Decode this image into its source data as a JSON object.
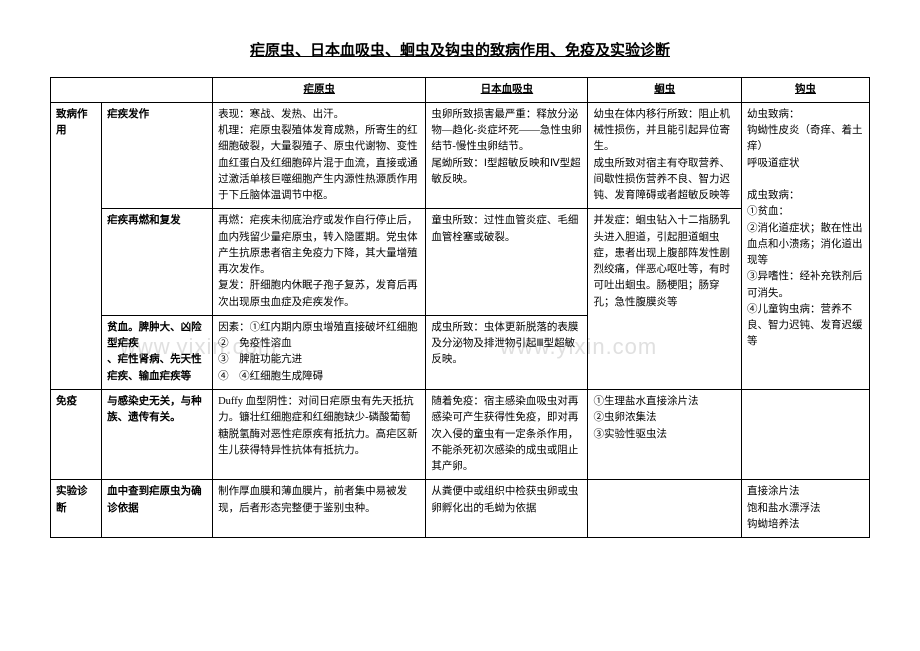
{
  "title": "疟原虫、日本血吸虫、蛔虫及钩虫的致病作用、免疫及实验诊断",
  "headers": {
    "blank": "",
    "col1": "疟原虫",
    "col2": "日本血吸虫",
    "col3": "蛔虫",
    "col4": "钩虫"
  },
  "rows": {
    "r1": {
      "cat": "致病作用",
      "sub": "疟疾发作",
      "c1": "表现：寒战、发热、出汗。\n机理：疟原虫裂殖体发育成熟，所寄生的红细胞破裂，大量裂殖子、原虫代谢物、变性血红蛋白及红细胞碎片混于血流，直接或通过激活单核巨噬细胞产生内源性热源质作用于下丘脑体温调节中枢。",
      "c2": "虫卵所致损害最严重：释放分泌物—趋化-炎症坏死——急性虫卵结节-慢性虫卵结节。\n尾蚴所致：Ⅰ型超敏反映和Ⅳ型超敏反映。",
      "c3": "幼虫在体内移行所致：阻止机械性损伤，并且能引起异位寄生。\n成虫所致对宿主有夺取营养、间歇性损伤营养不良、智力迟钝、发育障碍或者超敏反映等",
      "c4": "幼虫致病：\n钩蚴性皮炎（奇痒、着土痒）\n呼吸道症状"
    },
    "r2": {
      "sub": "疟疾再燃和复发",
      "c1": "再燃：疟疾未彻底治疗或发作自行停止后，血内残留少量疟原虫，转入隐匿期。党虫体产生抗原患者宿主免疫力下降，其大量增殖再次发作。\n复发：肝细胞内休眠子孢子复苏，发育后再次出现原虫血症及疟疾发作。",
      "c2": "童虫所致：过性血管炎症、毛细血管栓塞或破裂。",
      "c3": "并发症：蛔虫钻入十二指肠乳头进入胆道，引起胆道蛔虫症，患者出现上腹部阵发性剧烈绞痛，伴恶心呕吐等，有时可吐出蛔虫。肠梗阻；肠穿孔；急性腹膜炎等",
      "c4": "成虫致病：\n①贫血：\n②消化道症状；散在性出血点和小溃疡；消化道出现等\n③异嗜性：经补充铁剂后可消失。\n④儿童钩虫病：营养不良、智力迟钝、发育迟缓等"
    },
    "r3": {
      "sub": "贫血。脾肿大、凶险型疟疾\n、疟性肾病、先天性疟疾、输血疟疾等",
      "c1": "因素：①红内期内原虫增殖直接破坏红细胞\n②　免疫性溶血\n③　脾脏功能亢进\n④　④红细胞生成障碍",
      "c2": "成虫所致：虫体更新脱落的表膜及分泌物及排泄物引起Ⅲ型超敏反映。",
      "c3": "",
      "c4": ""
    },
    "r4": {
      "cat": "免疫",
      "sub": "与感染史无关，与种族、遗传有关。",
      "c1": "Duffy 血型阴性：对间日疟原虫有先天抵抗力。镰壮红细胞症和红细胞缺少-磷酸葡萄糖脱氢酶对恶性疟原疾有抵抗力。高疟区新生儿获得特异性抗体有抵抗力。",
      "c2": "随着免疫：宿主感染血吸虫对再感染可产生获得性免疫，即对再次入侵的童虫有一定条杀作用，不能杀死初次感染的成虫或阻止其产卵。",
      "c3": "①生理盐水直接涂片法\n②虫卵浓集法\n③实验性驱虫法",
      "c4": ""
    },
    "r5": {
      "cat": "实验诊断",
      "sub": "血中查到疟原虫为确诊依据",
      "c1": "制作厚血膜和薄血膜片，前者集中易被发现，后者形态完整便于鉴别虫种。",
      "c2": "从粪便中或组织中检获虫卵或虫卵孵化出的毛蚴为依据",
      "c3": "",
      "c4": "直接涂片法\n饱和盐水漂浮法\n钩蚴培养法"
    }
  },
  "watermark": "www.yixin.com"
}
